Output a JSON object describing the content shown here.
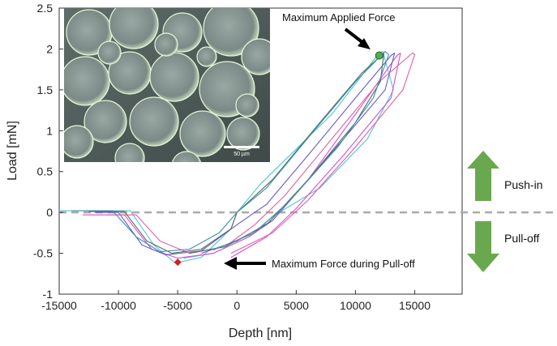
{
  "chart_data": {
    "type": "line",
    "title": "",
    "xlabel": "Depth [nm]",
    "ylabel": "Load [mN]",
    "xlim": [
      -15000,
      19000
    ],
    "ylim": [
      -1,
      2.5
    ],
    "xticks": [
      -15000,
      -10000,
      -5000,
      0,
      5000,
      10000,
      15000
    ],
    "xtick_labels": [
      "-15000",
      "-10000",
      "-5000",
      "0",
      "5000",
      "10000",
      "15000"
    ],
    "yticks": [
      -1,
      -0.5,
      0,
      0.5,
      1,
      1.5,
      2,
      2.5
    ],
    "ytick_labels": [
      "-1",
      "-0.5",
      "0",
      "0.5",
      "1",
      "1.5",
      "2",
      "2.5"
    ],
    "grid": false,
    "legend": "none",
    "reference_line": {
      "y": 0,
      "style": "dashed",
      "color": "#aaaaaa"
    },
    "series": [
      {
        "color": "#4fc3d8",
        "points": [
          [
            -15000,
            0.02
          ],
          [
            -9000,
            0.02
          ],
          [
            -7000,
            -0.4
          ],
          [
            -5200,
            -0.62
          ],
          [
            -3000,
            -0.55
          ],
          [
            -500,
            -0.2
          ],
          [
            0,
            0
          ],
          [
            2000,
            0.35
          ],
          [
            8000,
            1.2
          ],
          [
            12000,
            1.95
          ],
          [
            12300,
            1.97
          ],
          [
            13200,
            1.5
          ],
          [
            11000,
            0.9
          ],
          [
            7000,
            0.3
          ],
          [
            3000,
            -0.05
          ],
          [
            1000,
            -0.3
          ],
          [
            -2000,
            -0.5
          ],
          [
            -4500,
            -0.56
          ]
        ]
      },
      {
        "color": "#d84fd8",
        "points": [
          [
            -13000,
            -0.03
          ],
          [
            -9500,
            -0.03
          ],
          [
            -7200,
            -0.45
          ],
          [
            -5000,
            -0.56
          ],
          [
            -2000,
            -0.5
          ],
          [
            1000,
            -0.3
          ],
          [
            3000,
            -0.1
          ],
          [
            6000,
            0.4
          ],
          [
            10000,
            1.2
          ],
          [
            13500,
            1.92
          ],
          [
            13800,
            1.95
          ],
          [
            13000,
            1.4
          ],
          [
            9000,
            0.7
          ],
          [
            5000,
            0.05
          ],
          [
            2500,
            -0.3
          ],
          [
            -500,
            -0.55
          ]
        ]
      },
      {
        "color": "#6a5acd",
        "points": [
          [
            -12000,
            0.0
          ],
          [
            -10000,
            0.0
          ],
          [
            -8000,
            -0.4
          ],
          [
            -6000,
            -0.52
          ],
          [
            -3000,
            -0.47
          ],
          [
            0,
            -0.15
          ],
          [
            2500,
            0.1
          ],
          [
            6000,
            0.7
          ],
          [
            10000,
            1.4
          ],
          [
            13000,
            1.92
          ],
          [
            13300,
            1.95
          ],
          [
            12500,
            1.5
          ],
          [
            9000,
            0.9
          ],
          [
            6000,
            0.4
          ],
          [
            3000,
            -0.1
          ],
          [
            0,
            -0.35
          ],
          [
            -3000,
            -0.5
          ]
        ]
      },
      {
        "color": "#e060a0",
        "points": [
          [
            -11000,
            -0.03
          ],
          [
            -8500,
            -0.03
          ],
          [
            -6500,
            -0.35
          ],
          [
            -4000,
            -0.5
          ],
          [
            -1000,
            -0.42
          ],
          [
            1500,
            -0.15
          ],
          [
            4000,
            0.2
          ],
          [
            8000,
            0.9
          ],
          [
            12000,
            1.6
          ],
          [
            14800,
            1.95
          ],
          [
            15000,
            1.93
          ],
          [
            14000,
            1.5
          ],
          [
            10000,
            0.8
          ],
          [
            6000,
            0.15
          ],
          [
            3000,
            -0.25
          ],
          [
            -500,
            -0.5
          ]
        ]
      },
      {
        "color": "#556b5a",
        "points": [
          [
            -12500,
            0.01
          ],
          [
            -9500,
            0.01
          ],
          [
            -7600,
            -0.35
          ],
          [
            -5500,
            -0.5
          ],
          [
            -3000,
            -0.45
          ],
          [
            -500,
            -0.2
          ],
          [
            0,
            0
          ],
          [
            3000,
            0.4
          ],
          [
            7000,
            1.1
          ],
          [
            10500,
            1.7
          ],
          [
            12400,
            1.95
          ],
          [
            12100,
            1.6
          ],
          [
            10000,
            1.1
          ],
          [
            6000,
            0.4
          ],
          [
            2500,
            -0.15
          ],
          [
            -1000,
            -0.42
          ],
          [
            -4000,
            -0.5
          ]
        ]
      },
      {
        "color": "#3a8fb0",
        "points": [
          [
            -14000,
            0.02
          ],
          [
            -10500,
            0.02
          ],
          [
            -8500,
            -0.3
          ],
          [
            -6500,
            -0.48
          ],
          [
            -4000,
            -0.45
          ],
          [
            -1500,
            -0.25
          ],
          [
            0,
            0
          ],
          [
            2500,
            0.3
          ],
          [
            6500,
            1.0
          ],
          [
            10000,
            1.6
          ],
          [
            12500,
            1.97
          ],
          [
            12800,
            1.93
          ],
          [
            11500,
            1.4
          ],
          [
            8500,
            0.8
          ],
          [
            4500,
            0.15
          ],
          [
            1500,
            -0.25
          ],
          [
            -2000,
            -0.46
          ]
        ]
      }
    ],
    "markers": [
      {
        "name": "max-applied-force",
        "x": 12000,
        "y": 1.92,
        "color": "#4caf50"
      },
      {
        "name": "max-pull-off-force",
        "x": -5000,
        "y": -0.61,
        "color": "#cc2222"
      }
    ],
    "annotations": [
      {
        "text": "Maximum Applied Force"
      },
      {
        "text": "Maximum Force during Pull-off"
      }
    ],
    "side_labels": {
      "up": "Push-in",
      "down": "Pull-off",
      "arrow_color": "#6aa84f"
    },
    "inset": {
      "scale_bar_label": "50 µm"
    }
  }
}
